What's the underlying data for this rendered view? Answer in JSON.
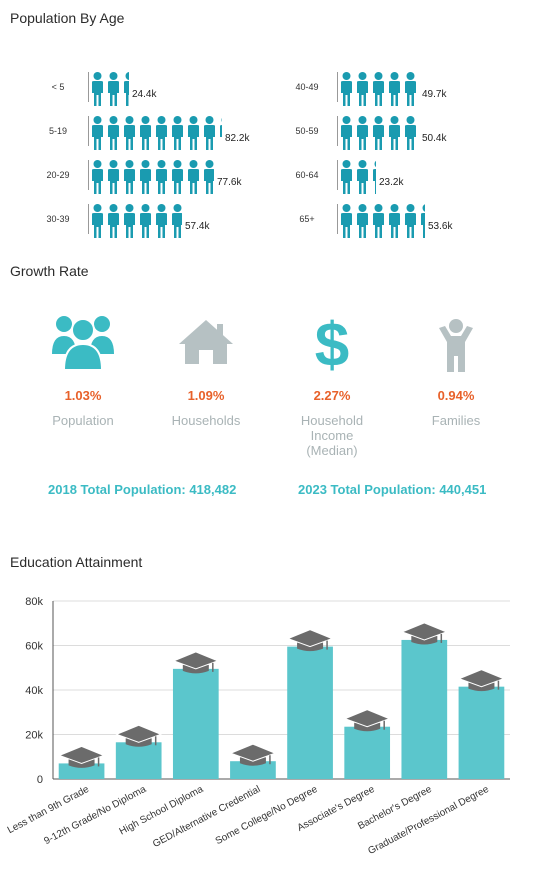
{
  "population_by_age": {
    "title": "Population By Age",
    "left": [
      {
        "label": "< 5",
        "value_text": "24.4k",
        "value": 24.4
      },
      {
        "label": "5-19",
        "value_text": "82.2k",
        "value": 82.2
      },
      {
        "label": "20-29",
        "value_text": "77.6k",
        "value": 77.6
      },
      {
        "label": "30-39",
        "value_text": "57.4k",
        "value": 57.4
      }
    ],
    "right": [
      {
        "label": "40-49",
        "value_text": "49.7k",
        "value": 49.7
      },
      {
        "label": "50-59",
        "value_text": "50.4k",
        "value": 50.4
      },
      {
        "label": "60-64",
        "value_text": "23.2k",
        "value": 23.2
      },
      {
        "label": "65+",
        "value_text": "53.6k",
        "value": 53.6
      }
    ],
    "icon": "person-icon",
    "color": "#1a9bb0"
  },
  "growth_rate": {
    "title": "Growth Rate",
    "metrics": [
      {
        "value": "1.03%",
        "label": "Population",
        "icon": "group-icon",
        "color": "#3bbbc4"
      },
      {
        "value": "1.09%",
        "label": "Households",
        "icon": "house-icon",
        "color": "#b6c1c3"
      },
      {
        "value": "2.27%",
        "label": "Household\nIncome\n(Median)",
        "icon": "dollar-icon",
        "color": "#3bbbc4"
      },
      {
        "value": "0.94%",
        "label": "Families",
        "icon": "family-icon",
        "color": "#b6c1c3"
      }
    ],
    "total_2018": "2018 Total Population: 418,482",
    "total_2023": "2023 Total Population: 440,451",
    "accent": "#e8612a"
  },
  "chart_data": {
    "type": "bar",
    "title": "Education Attainment",
    "categories": [
      "Less than 9th Grade",
      "9-12th Grade/No Diploma",
      "High School Diploma",
      "GED/Alternative Credential",
      "Some College/No Degree",
      "Associate's Degree",
      "Bachelor's Degree",
      "Graduate/Professional Degree"
    ],
    "values": [
      7000,
      16500,
      49500,
      8000,
      59500,
      23500,
      62500,
      41500
    ],
    "ylim": [
      0,
      80000
    ],
    "yticks": [
      0,
      20000,
      40000,
      60000,
      80000
    ],
    "ytick_labels": [
      "0",
      "20k",
      "40k",
      "60k",
      "80k"
    ],
    "grid": true,
    "bar_color": "#5bc6cc",
    "marker_icon": "graduation-cap-icon"
  }
}
